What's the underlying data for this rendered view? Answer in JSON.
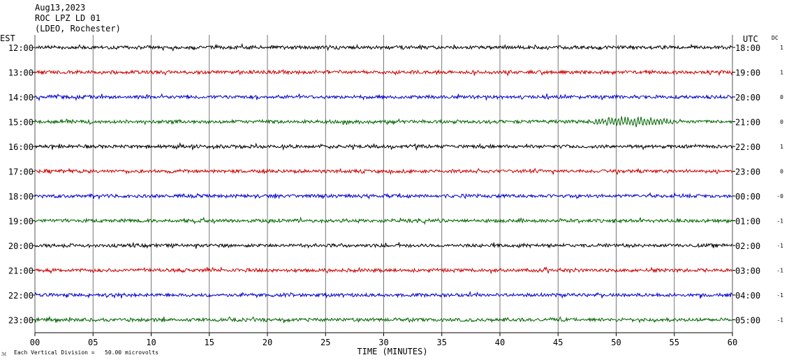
{
  "header": {
    "date": "Aug13,2023",
    "station": "ROC LPZ LD 01",
    "network": "(LDEO, Rochester)"
  },
  "left_axis_label": "EST",
  "right_axis_label": "UTC",
  "dc_label": "DC",
  "footer": {
    "note": "Each Vertical Division =   50.00 microvolts"
  },
  "colors": {
    "black": "#000000",
    "red": "#cc0000",
    "blue": "#0000cc",
    "green": "#006600",
    "grid": "#555555"
  },
  "chart_data": {
    "type": "line",
    "title": "Aug13,2023 ROC LPZ LD 01 (LDEO, Rochester)",
    "xlabel": "TIME (MINUTES)",
    "xlim": [
      0,
      60
    ],
    "x_ticks": [
      "00",
      "05",
      "10",
      "15",
      "20",
      "25",
      "30",
      "35",
      "40",
      "45",
      "50",
      "55",
      "60"
    ],
    "grid": true,
    "rows": [
      {
        "est": "12:00",
        "utc": "18:00",
        "dc": "1",
        "color": "black"
      },
      {
        "est": "13:00",
        "utc": "19:00",
        "dc": "1",
        "color": "red"
      },
      {
        "est": "14:00",
        "utc": "20:00",
        "dc": "0",
        "color": "blue"
      },
      {
        "est": "15:00",
        "utc": "21:00",
        "dc": "0",
        "color": "green",
        "event": {
          "start_min": 47.5,
          "end_min": 55.5,
          "peak_min": 51.2
        }
      },
      {
        "est": "16:00",
        "utc": "22:00",
        "dc": "1",
        "color": "black"
      },
      {
        "est": "17:00",
        "utc": "23:00",
        "dc": "0",
        "color": "red"
      },
      {
        "est": "18:00",
        "utc": "00:00",
        "dc": "-0",
        "color": "blue"
      },
      {
        "est": "19:00",
        "utc": "01:00",
        "dc": "-1",
        "color": "green"
      },
      {
        "est": "20:00",
        "utc": "02:00",
        "dc": "-1",
        "color": "black"
      },
      {
        "est": "21:00",
        "utc": "03:00",
        "dc": "-1",
        "color": "red"
      },
      {
        "est": "22:00",
        "utc": "04:00",
        "dc": "-1",
        "color": "blue"
      },
      {
        "est": "23:00",
        "utc": "05:00",
        "dc": "-1",
        "color": "green"
      }
    ]
  }
}
